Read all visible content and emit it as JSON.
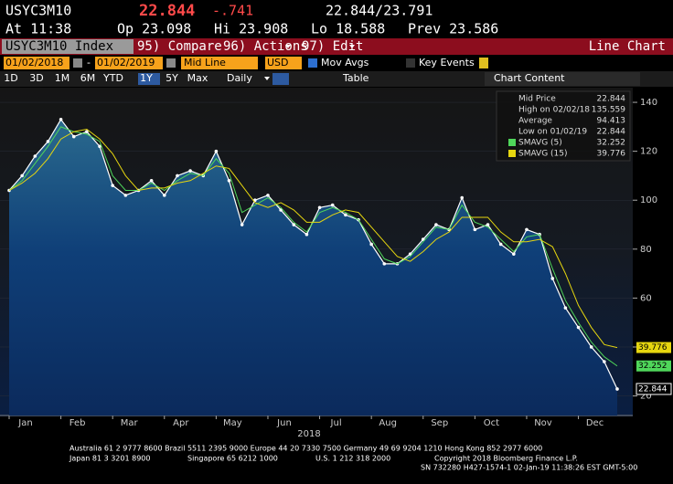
{
  "header": {
    "ticker": "USYC3M10",
    "price": "22.844",
    "change": "-.741",
    "range": "22.844/23.791",
    "time": "At 11:38",
    "open": "Op 23.098",
    "high": "Hi 23.908",
    "low": "Lo 18.588",
    "prev": "Prev 23.586"
  },
  "menu": {
    "security": "USYC3M10 Index",
    "compare": "95) Compare",
    "actions": "96) Actions",
    "edit": "97) Edit",
    "view": "Line Chart"
  },
  "controls": {
    "start": "01/02/2018",
    "sep": "-",
    "end": "01/02/2019",
    "field": "Mid Line",
    "currency": "USD",
    "mov_avgs": "Mov Avgs",
    "key_events": "Key Events"
  },
  "periods": [
    "1D",
    "3D",
    "1M",
    "6M",
    "YTD",
    "1Y",
    "5Y",
    "Max"
  ],
  "frequency": "Daily",
  "table": "Table",
  "chart_content": "Chart Content",
  "chart_data": {
    "type": "line",
    "x_label": "2018",
    "categories": [
      "Jan",
      null,
      null,
      null,
      "Feb",
      null,
      null,
      null,
      "Mar",
      null,
      null,
      null,
      "Apr",
      null,
      null,
      null,
      "May",
      null,
      null,
      null,
      "Jun",
      null,
      null,
      null,
      "Jul",
      null,
      null,
      null,
      "Aug",
      null,
      null,
      null,
      "Sep",
      null,
      null,
      null,
      "Oct",
      null,
      null,
      null,
      "Nov",
      null,
      null,
      null,
      "Dec",
      null,
      null,
      null
    ],
    "series": [
      {
        "name": "Mid Price",
        "color": "#ffffff",
        "values": [
          104,
          110,
          118,
          124,
          133,
          126,
          128,
          122,
          106,
          102,
          104,
          108,
          102,
          110,
          112,
          110,
          120,
          108,
          90,
          100,
          102,
          96,
          90,
          86,
          97,
          98,
          94,
          92,
          82,
          74,
          74,
          78,
          84,
          90,
          88,
          101,
          88,
          90,
          82,
          78,
          88,
          86,
          68,
          56,
          48,
          40,
          34,
          22.844
        ]
      },
      {
        "name": "SMAVG (5)",
        "color": "#4fd65a",
        "values": [
          104,
          108,
          115,
          122,
          130,
          128,
          127,
          124,
          110,
          104,
          104,
          107,
          104,
          108,
          111,
          110,
          117,
          111,
          95,
          98,
          101,
          97,
          91,
          87,
          95,
          97,
          95,
          92,
          84,
          76,
          74,
          77,
          83,
          89,
          88,
          98,
          91,
          89,
          84,
          79,
          85,
          86,
          72,
          59,
          50,
          42,
          36,
          32.252
        ]
      },
      {
        "name": "SMAVG (15)",
        "color": "#e6d60f",
        "values": [
          104,
          107,
          111,
          117,
          125,
          128,
          129,
          125,
          119,
          110,
          104,
          105,
          105,
          107,
          108,
          111,
          114,
          113,
          106,
          99,
          97,
          99,
          96,
          91,
          91,
          94,
          96,
          95,
          89,
          83,
          77,
          75,
          79,
          84,
          87,
          93,
          93,
          93,
          87,
          83,
          83,
          84,
          81,
          70,
          57,
          48,
          41,
          39.776
        ]
      }
    ],
    "stats": [
      {
        "label": "High on 02/02/18",
        "value": "135.559"
      },
      {
        "label": "Average",
        "value": "94.413"
      },
      {
        "label": "Low on 01/02/19",
        "value": "22.844"
      }
    ],
    "ylim": [
      12,
      144.5
    ],
    "yticks": [
      20,
      40,
      60,
      80,
      100,
      120,
      140
    ]
  },
  "footer": [
    "Australia 61 2 9777 8600 Brazil 5511 2395 9000 Europe 44 20 7330 7500 Germany 49 69 9204 1210 Hong Kong 852 2977 6000",
    "Japan 81 3 3201 8900",
    "Singapore 65 6212 1000",
    "U.S. 1 212 318 2000",
    "Copyright 2018 Bloomberg Finance L.P.",
    "SN 732280 H427-1574-1 02-Jan-19 11:38:26 EST  GMT-5:00"
  ]
}
